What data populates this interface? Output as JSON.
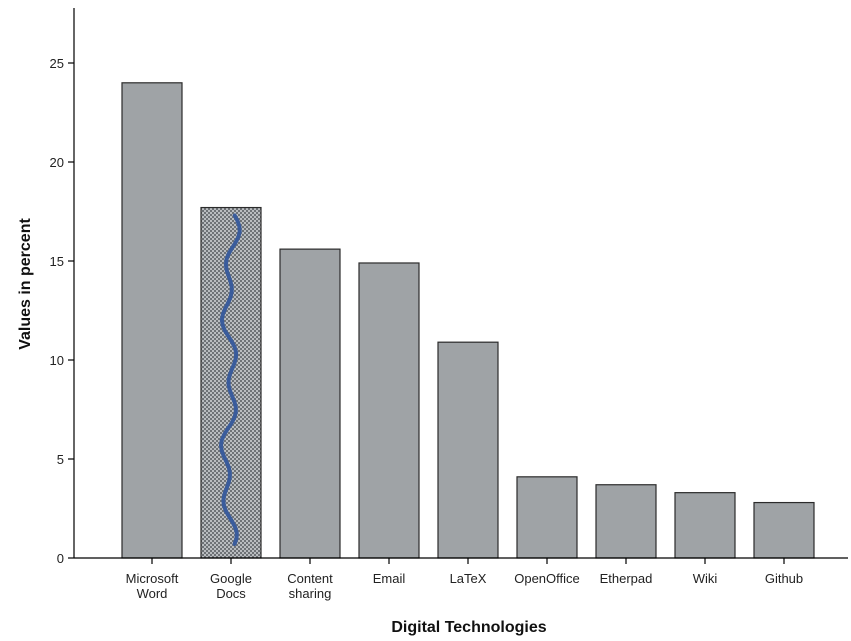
{
  "chart_data": {
    "type": "bar",
    "title": "",
    "xlabel": "Digital Technologies",
    "ylabel": "Values in percent",
    "ylim": [
      0,
      27
    ],
    "yticks": [
      0,
      5,
      10,
      15,
      20,
      25
    ],
    "grid": false,
    "categories": [
      [
        "Microsoft",
        "Word"
      ],
      [
        "Google",
        "Docs"
      ],
      [
        "Content",
        "sharing"
      ],
      [
        "Email"
      ],
      [
        "LaTeX"
      ],
      [
        "OpenOffice"
      ],
      [
        "Etherpad"
      ],
      [
        "Wiki"
      ],
      [
        "Github"
      ]
    ],
    "values": [
      24.0,
      17.7,
      15.6,
      14.9,
      10.9,
      4.1,
      3.7,
      3.3,
      2.8
    ],
    "highlighted_index": 1,
    "bar_color": "#9fa3a6",
    "bar_edge_color": "#2b2b2b",
    "highlight_pattern_color": "#6e7276",
    "annotation_line_color": "#3a5c9c"
  }
}
